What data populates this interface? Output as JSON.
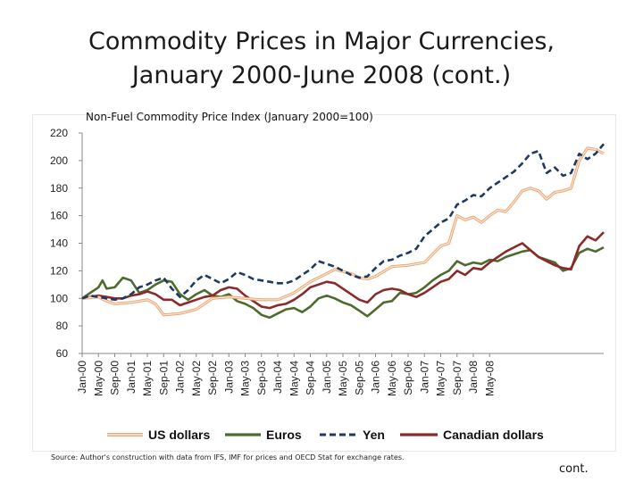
{
  "slide": {
    "title_line1": "Commodity Prices in Major Currencies,",
    "title_line2": "January 2000-June 2008 (cont.)",
    "source": "Source: Author's construction with data from IFS, IMF for prices and OECD Stat for exchange rates.",
    "cont": "cont."
  },
  "chart_data": {
    "type": "line",
    "title": "Non-Fuel Commodity Price Index (January 2000=100)",
    "xlabel": "",
    "ylabel": "",
    "ylim": [
      60,
      220
    ],
    "yticks": [
      60,
      80,
      100,
      120,
      140,
      160,
      180,
      200,
      220
    ],
    "grid": false,
    "legend_position": "bottom",
    "x_start": "2000-01",
    "x_end": "2008-06",
    "x_tick_labels": [
      "Jan-00",
      "May-00",
      "Sep-00",
      "Jan-01",
      "May-01",
      "Sep-01",
      "Jan-02",
      "May-02",
      "Sep-02",
      "Jan-03",
      "May-03",
      "Sep-03",
      "Jan-04",
      "May-04",
      "Sep-04",
      "Jan-05",
      "May-05",
      "Sep-05",
      "Jan-06",
      "May-06",
      "Sep-06",
      "Jan-07",
      "May-07",
      "Sep-07",
      "Jan-08",
      "May-08"
    ],
    "series": [
      {
        "name": "US dollars",
        "color": "#e8a878",
        "style": "solid-outlined",
        "points": [
          [
            0,
            100
          ],
          [
            4,
            101
          ],
          [
            6,
            98
          ],
          [
            8,
            96
          ],
          [
            12,
            97
          ],
          [
            16,
            99
          ],
          [
            18,
            96
          ],
          [
            20,
            88
          ],
          [
            24,
            89
          ],
          [
            28,
            92
          ],
          [
            30,
            96
          ],
          [
            32,
            100
          ],
          [
            36,
            101
          ],
          [
            40,
            100
          ],
          [
            44,
            99
          ],
          [
            48,
            99
          ],
          [
            52,
            104
          ],
          [
            56,
            112
          ],
          [
            60,
            118
          ],
          [
            62,
            121
          ],
          [
            66,
            118
          ],
          [
            68,
            115
          ],
          [
            70,
            114
          ],
          [
            72,
            116
          ],
          [
            76,
            123
          ],
          [
            80,
            124
          ],
          [
            84,
            126
          ],
          [
            86,
            132
          ],
          [
            88,
            138
          ],
          [
            90,
            140
          ],
          [
            92,
            160
          ],
          [
            94,
            157
          ],
          [
            96,
            159
          ],
          [
            98,
            155
          ],
          [
            100,
            160
          ],
          [
            102,
            164
          ],
          [
            104,
            163
          ],
          [
            106,
            170
          ],
          [
            108,
            178
          ],
          [
            110,
            180
          ],
          [
            112,
            178
          ],
          [
            114,
            172
          ],
          [
            116,
            177
          ],
          [
            118,
            178
          ],
          [
            120,
            180
          ],
          [
            122,
            200
          ],
          [
            124,
            209
          ],
          [
            126,
            208
          ],
          [
            128,
            205
          ]
        ]
      },
      {
        "name": "Euros",
        "color": "#4d6b2e",
        "style": "solid",
        "points": [
          [
            0,
            100
          ],
          [
            2,
            104
          ],
          [
            4,
            108
          ],
          [
            5,
            113
          ],
          [
            6,
            107
          ],
          [
            8,
            108
          ],
          [
            10,
            115
          ],
          [
            12,
            113
          ],
          [
            14,
            104
          ],
          [
            16,
            106
          ],
          [
            18,
            110
          ],
          [
            20,
            113
          ],
          [
            22,
            112
          ],
          [
            24,
            103
          ],
          [
            26,
            99
          ],
          [
            28,
            103
          ],
          [
            30,
            106
          ],
          [
            32,
            102
          ],
          [
            34,
            101
          ],
          [
            36,
            103
          ],
          [
            38,
            98
          ],
          [
            40,
            96
          ],
          [
            42,
            93
          ],
          [
            44,
            88
          ],
          [
            46,
            86
          ],
          [
            48,
            89
          ],
          [
            50,
            92
          ],
          [
            52,
            93
          ],
          [
            54,
            90
          ],
          [
            56,
            94
          ],
          [
            58,
            100
          ],
          [
            60,
            102
          ],
          [
            62,
            100
          ],
          [
            64,
            97
          ],
          [
            66,
            95
          ],
          [
            68,
            91
          ],
          [
            70,
            87
          ],
          [
            72,
            92
          ],
          [
            74,
            97
          ],
          [
            76,
            98
          ],
          [
            78,
            104
          ],
          [
            80,
            103
          ],
          [
            82,
            104
          ],
          [
            84,
            108
          ],
          [
            86,
            113
          ],
          [
            88,
            117
          ],
          [
            90,
            120
          ],
          [
            92,
            127
          ],
          [
            94,
            124
          ],
          [
            96,
            126
          ],
          [
            98,
            125
          ],
          [
            100,
            128
          ],
          [
            102,
            127
          ],
          [
            104,
            130
          ],
          [
            106,
            132
          ],
          [
            108,
            134
          ],
          [
            110,
            135
          ],
          [
            112,
            130
          ],
          [
            114,
            128
          ],
          [
            116,
            126
          ],
          [
            118,
            120
          ],
          [
            120,
            122
          ],
          [
            122,
            133
          ],
          [
            124,
            136
          ],
          [
            126,
            134
          ],
          [
            128,
            137
          ]
        ]
      },
      {
        "name": "Yen",
        "color": "#1f3a5f",
        "style": "dashed",
        "points": [
          [
            0,
            100
          ],
          [
            2,
            102
          ],
          [
            4,
            101
          ],
          [
            6,
            100
          ],
          [
            8,
            99
          ],
          [
            10,
            100
          ],
          [
            12,
            103
          ],
          [
            14,
            108
          ],
          [
            16,
            110
          ],
          [
            18,
            113
          ],
          [
            20,
            115
          ],
          [
            22,
            107
          ],
          [
            24,
            101
          ],
          [
            26,
            106
          ],
          [
            28,
            113
          ],
          [
            30,
            117
          ],
          [
            32,
            114
          ],
          [
            34,
            111
          ],
          [
            36,
            114
          ],
          [
            38,
            119
          ],
          [
            40,
            117
          ],
          [
            42,
            114
          ],
          [
            44,
            113
          ],
          [
            46,
            112
          ],
          [
            48,
            111
          ],
          [
            50,
            111
          ],
          [
            52,
            113
          ],
          [
            54,
            117
          ],
          [
            56,
            121
          ],
          [
            58,
            127
          ],
          [
            60,
            125
          ],
          [
            62,
            123
          ],
          [
            64,
            120
          ],
          [
            66,
            117
          ],
          [
            68,
            115
          ],
          [
            70,
            116
          ],
          [
            72,
            122
          ],
          [
            74,
            127
          ],
          [
            76,
            128
          ],
          [
            78,
            131
          ],
          [
            80,
            133
          ],
          [
            82,
            136
          ],
          [
            84,
            145
          ],
          [
            86,
            150
          ],
          [
            88,
            155
          ],
          [
            90,
            158
          ],
          [
            92,
            168
          ],
          [
            94,
            171
          ],
          [
            96,
            175
          ],
          [
            98,
            174
          ],
          [
            100,
            180
          ],
          [
            102,
            184
          ],
          [
            104,
            188
          ],
          [
            106,
            192
          ],
          [
            108,
            198
          ],
          [
            110,
            205
          ],
          [
            112,
            207
          ],
          [
            114,
            191
          ],
          [
            116,
            195
          ],
          [
            118,
            189
          ],
          [
            120,
            191
          ],
          [
            122,
            205
          ],
          [
            124,
            201
          ],
          [
            126,
            205
          ],
          [
            128,
            212
          ]
        ]
      },
      {
        "name": "Canadian dollars",
        "color": "#8b2a2a",
        "style": "solid",
        "points": [
          [
            0,
            100
          ],
          [
            2,
            101
          ],
          [
            4,
            102
          ],
          [
            6,
            101
          ],
          [
            8,
            100
          ],
          [
            10,
            100
          ],
          [
            12,
            102
          ],
          [
            14,
            103
          ],
          [
            16,
            105
          ],
          [
            18,
            103
          ],
          [
            20,
            99
          ],
          [
            22,
            99
          ],
          [
            24,
            95
          ],
          [
            26,
            97
          ],
          [
            28,
            99
          ],
          [
            30,
            101
          ],
          [
            32,
            102
          ],
          [
            34,
            106
          ],
          [
            36,
            108
          ],
          [
            38,
            107
          ],
          [
            40,
            102
          ],
          [
            42,
            98
          ],
          [
            44,
            94
          ],
          [
            46,
            93
          ],
          [
            48,
            95
          ],
          [
            50,
            96
          ],
          [
            52,
            99
          ],
          [
            54,
            103
          ],
          [
            56,
            108
          ],
          [
            58,
            110
          ],
          [
            60,
            112
          ],
          [
            62,
            111
          ],
          [
            64,
            107
          ],
          [
            66,
            103
          ],
          [
            68,
            99
          ],
          [
            70,
            97
          ],
          [
            72,
            103
          ],
          [
            74,
            106
          ],
          [
            76,
            107
          ],
          [
            78,
            106
          ],
          [
            80,
            103
          ],
          [
            82,
            101
          ],
          [
            84,
            104
          ],
          [
            86,
            108
          ],
          [
            88,
            112
          ],
          [
            90,
            114
          ],
          [
            92,
            120
          ],
          [
            94,
            117
          ],
          [
            96,
            122
          ],
          [
            98,
            121
          ],
          [
            100,
            126
          ],
          [
            102,
            130
          ],
          [
            104,
            134
          ],
          [
            106,
            137
          ],
          [
            108,
            140
          ],
          [
            110,
            135
          ],
          [
            112,
            130
          ],
          [
            114,
            127
          ],
          [
            116,
            124
          ],
          [
            118,
            122
          ],
          [
            120,
            121
          ],
          [
            122,
            138
          ],
          [
            124,
            145
          ],
          [
            126,
            142
          ],
          [
            128,
            148
          ]
        ]
      }
    ]
  }
}
